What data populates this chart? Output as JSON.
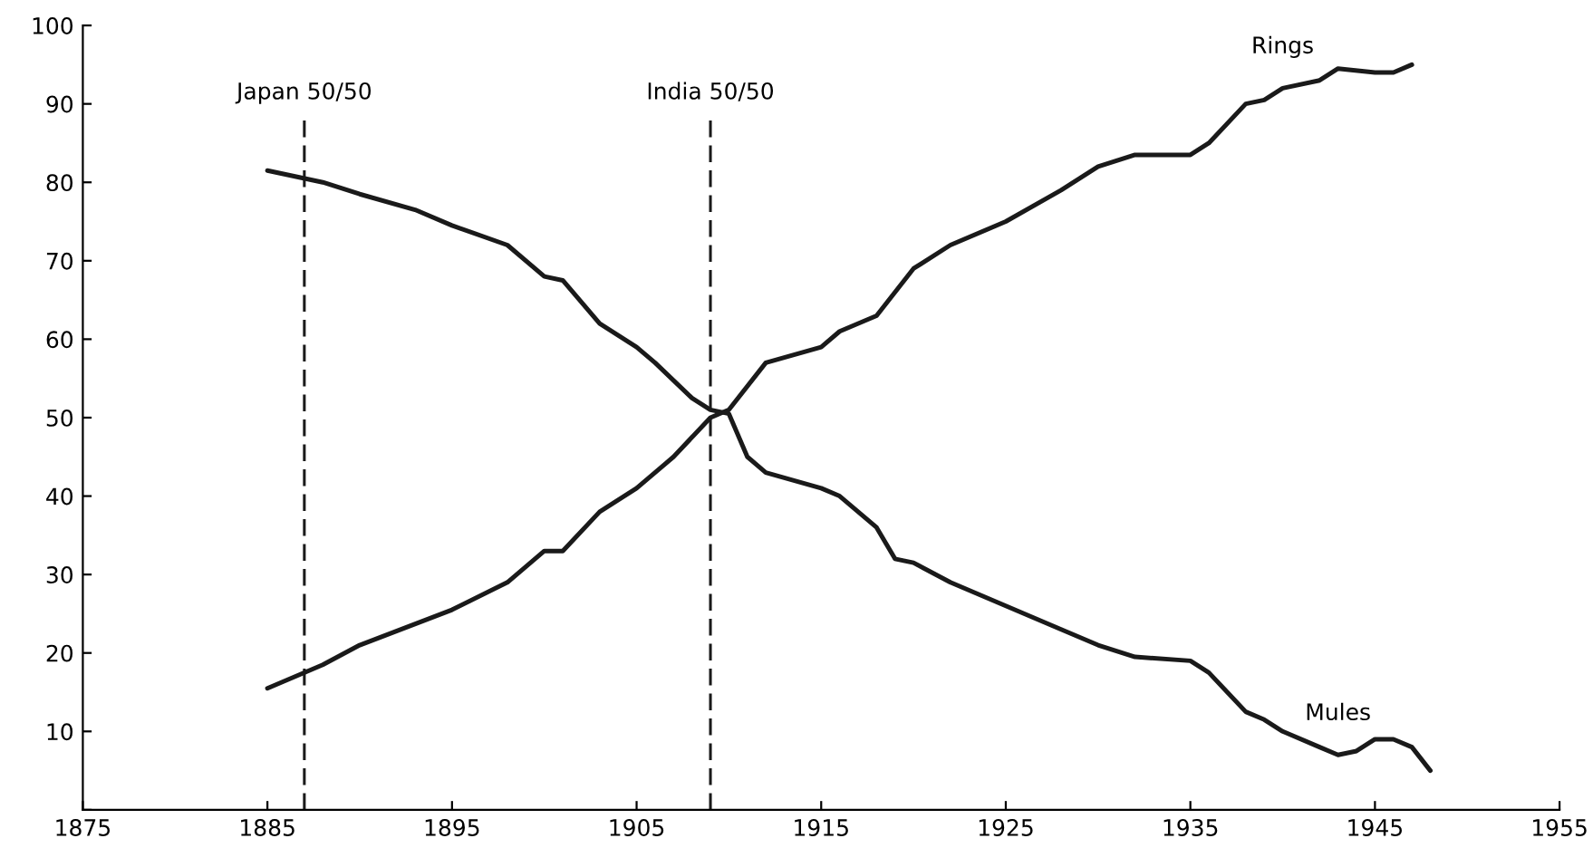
{
  "chart_data": {
    "type": "line",
    "xlim": [
      1875,
      1955
    ],
    "xticks": [
      1875,
      1885,
      1895,
      1905,
      1915,
      1925,
      1935,
      1945,
      1955
    ],
    "ylim": [
      0,
      100
    ],
    "yticks": [
      {
        "value": 0,
        "label": null
      },
      10,
      20,
      30,
      40,
      50,
      60,
      70,
      80,
      90,
      100
    ],
    "grid": false,
    "marker": "none",
    "line_style": "solid",
    "series": [
      {
        "name": "Rings",
        "color": "#1a1a1a",
        "x": [
          1885,
          1888,
          1890,
          1895,
          1898,
          1900,
          1901,
          1903,
          1905,
          1907,
          1909,
          1910,
          1912,
          1915,
          1916,
          1918,
          1920,
          1922,
          1925,
          1928,
          1930,
          1932,
          1935,
          1936,
          1938,
          1939,
          1940,
          1942,
          1943,
          1945,
          1946,
          1947
        ],
        "values": [
          15.5,
          18.5,
          21,
          25.5,
          29,
          33,
          33,
          38,
          41,
          45,
          50,
          51,
          57,
          59,
          61,
          63,
          69,
          72,
          75,
          79,
          82,
          83.5,
          83.5,
          85,
          90,
          90.5,
          92,
          93,
          94.5,
          94,
          94,
          95
        ]
      },
      {
        "name": "Mules",
        "color": "#1a1a1a",
        "x": [
          1885,
          1888,
          1890,
          1893,
          1895,
          1898,
          1900,
          1901,
          1903,
          1905,
          1906,
          1908,
          1909,
          1910,
          1911,
          1912,
          1915,
          1916,
          1918,
          1919,
          1920,
          1922,
          1925,
          1928,
          1930,
          1932,
          1935,
          1936,
          1938,
          1939,
          1940,
          1942,
          1943,
          1944,
          1945,
          1946,
          1947,
          1948
        ],
        "values": [
          81.5,
          80,
          78.5,
          76.5,
          74.5,
          72,
          68,
          67.5,
          62,
          59,
          57,
          52.5,
          51,
          50.5,
          45,
          43,
          41,
          40,
          36,
          32,
          31.5,
          29,
          26,
          23,
          21,
          19.5,
          19,
          17.5,
          12.5,
          11.5,
          10,
          8,
          7,
          7.5,
          9,
          9,
          8,
          5
        ]
      }
    ],
    "ref_lines": [
      {
        "axis": "x",
        "value": 1887,
        "label": "Japan 50/50",
        "color": "#1a1a1a",
        "line_style": "dashed"
      },
      {
        "axis": "x",
        "value": 1909,
        "label": "India 50/50",
        "color": "#1a1a1a",
        "line_style": "dashed"
      }
    ]
  }
}
